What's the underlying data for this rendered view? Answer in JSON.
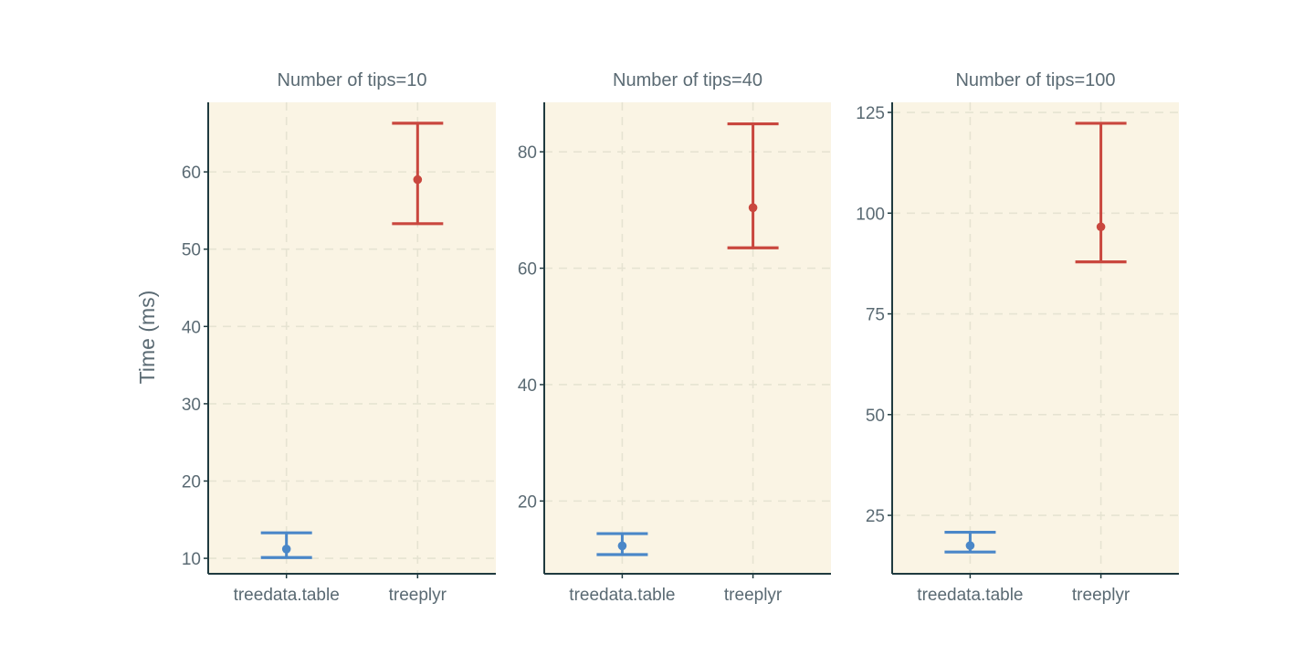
{
  "colors": {
    "background": "#ffffff",
    "panel_background": "#faf4e4",
    "grid": "#e6e3d2",
    "axis": "#1f3a3f",
    "text": "#5a6a73",
    "treedata_table": "#4a87c8",
    "treeplyr": "#c9473e"
  },
  "chart_data": {
    "type": "errorbar",
    "ylabel": "Time (ms)",
    "categories": [
      "treedata.table",
      "treeplyr"
    ],
    "facets": [
      {
        "title": "Number of tips=10",
        "ylim": [
          8,
          69
        ],
        "yticks": [
          10,
          20,
          30,
          40,
          50,
          60
        ],
        "points": [
          {
            "category": "treedata.table",
            "mean": 11.2,
            "lower": 10.1,
            "upper": 13.3
          },
          {
            "category": "treeplyr",
            "mean": 59.0,
            "lower": 53.3,
            "upper": 66.3
          }
        ]
      },
      {
        "title": "Number of tips=40",
        "ylim": [
          7.5,
          88.5
        ],
        "yticks": [
          20,
          40,
          60,
          80
        ],
        "points": [
          {
            "category": "treedata.table",
            "mean": 12.3,
            "lower": 10.8,
            "upper": 14.4
          },
          {
            "category": "treeplyr",
            "mean": 70.4,
            "lower": 63.5,
            "upper": 84.8
          }
        ]
      },
      {
        "title": "Number of tips=100",
        "ylim": [
          10.5,
          127.5
        ],
        "yticks": [
          25,
          50,
          75,
          100,
          125
        ],
        "points": [
          {
            "category": "treedata.table",
            "mean": 17.5,
            "lower": 15.9,
            "upper": 20.8
          },
          {
            "category": "treeplyr",
            "mean": 96.6,
            "lower": 87.9,
            "upper": 122.3
          }
        ]
      }
    ]
  }
}
